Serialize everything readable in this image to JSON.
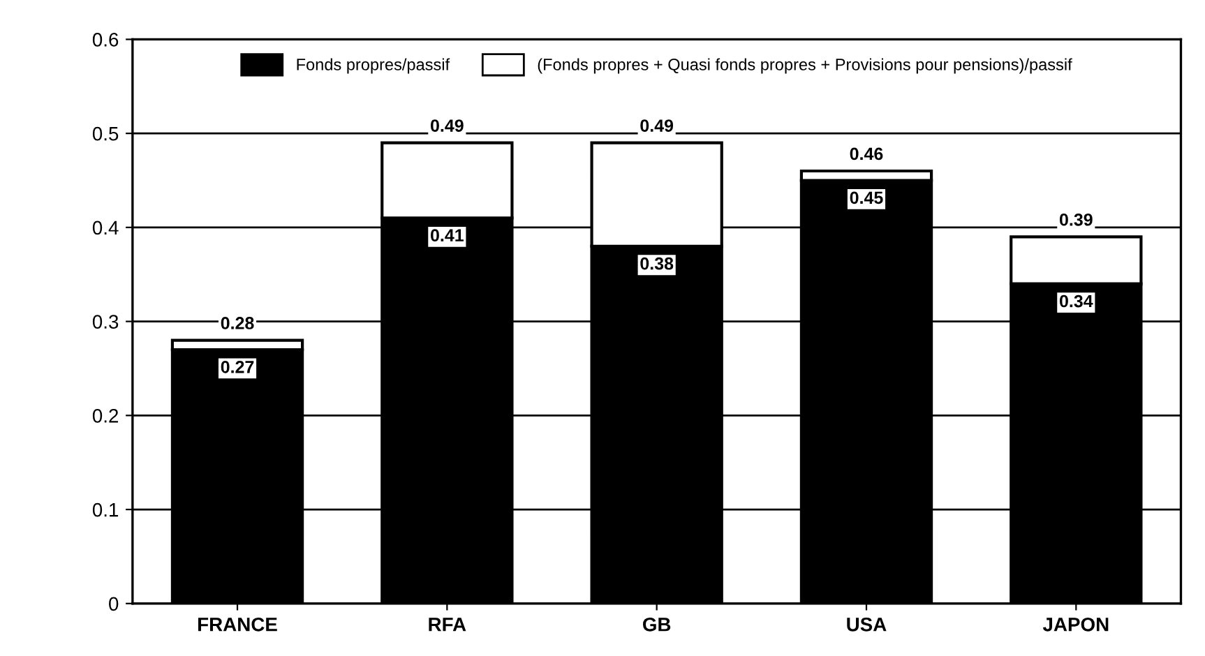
{
  "chart_data": {
    "type": "bar",
    "stacked": true,
    "categories": [
      "FRANCE",
      "RFA",
      "GB",
      "USA",
      "JAPON"
    ],
    "series": [
      {
        "name": "Fonds propres/passif",
        "color": "#000000",
        "values": [
          0.27,
          0.41,
          0.38,
          0.45,
          0.34
        ],
        "value_labels": [
          "0.27",
          "0.41",
          "0.38",
          "0.45",
          "0.34"
        ]
      },
      {
        "name": "(Fonds propres + Quasi fonds propres + Provisions pour pensions)/passif",
        "color": "#ffffff",
        "values": [
          0.01,
          0.08,
          0.11,
          0.01,
          0.05
        ]
      }
    ],
    "totals": [
      "0.28",
      "0.49",
      "0.49",
      "0.46",
      "0.39"
    ],
    "ylim": [
      0,
      0.6
    ],
    "yticks": [
      0,
      0.1,
      0.2,
      0.3,
      0.4,
      0.5,
      0.6
    ],
    "grid": "y",
    "legend": "top"
  }
}
